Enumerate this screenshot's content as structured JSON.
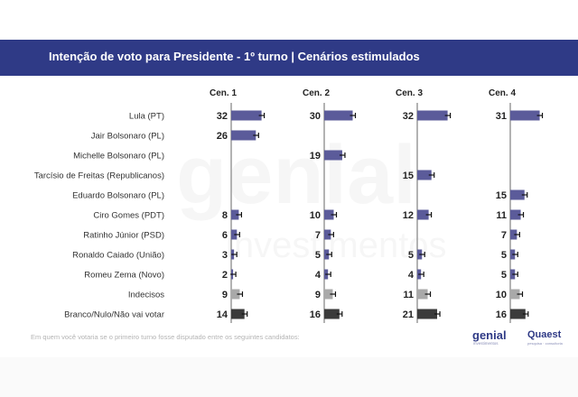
{
  "header": {
    "title": "Intenção de voto para Presidente - 1º turno | Cenários estimulados"
  },
  "chart_data": {
    "type": "bar",
    "orientation": "horizontal",
    "title": "Intenção de voto para Presidente - 1º turno | Cenários estimulados",
    "scenarios": [
      "Cen. 1",
      "Cen. 2",
      "Cen. 3",
      "Cen. 4"
    ],
    "categories": [
      "Lula (PT)",
      "Jair Bolsonaro (PL)",
      "Michelle Bolsonaro (PL)",
      "Tarcísio de Freitas (Republicanos)",
      "Eduardo Bolsonaro (PL)",
      "Ciro Gomes (PDT)",
      "Ratinho Júnior (PSD)",
      "Ronaldo Caiado (União)",
      "Romeu Zema (Novo)",
      "Indecisos",
      "Branco/Nulo/Não vai votar"
    ],
    "series": [
      {
        "values": [
          32,
          26,
          null,
          null,
          null,
          8,
          6,
          3,
          2,
          9,
          14
        ]
      },
      {
        "values": [
          30,
          null,
          19,
          null,
          null,
          10,
          7,
          5,
          4,
          9,
          16
        ]
      },
      {
        "values": [
          32,
          null,
          null,
          15,
          null,
          12,
          null,
          5,
          4,
          11,
          21
        ]
      },
      {
        "values": [
          31,
          null,
          null,
          null,
          15,
          11,
          7,
          5,
          5,
          10,
          16
        ]
      }
    ],
    "colors": {
      "candidate": "#5b5b9a",
      "indecisos": "#a9a9a9",
      "branco": "#3b3b3b",
      "axis": "#9a9a9a"
    },
    "footnote": "Em quem você votaria se o primeiro turno fosse disputado entre os seguintes candidatos:"
  },
  "brand": {
    "logo1": "genial",
    "logo1_sub": "investimentos",
    "logo2": "Quaest",
    "logo2_sub": "pesquisa · consultoria"
  }
}
